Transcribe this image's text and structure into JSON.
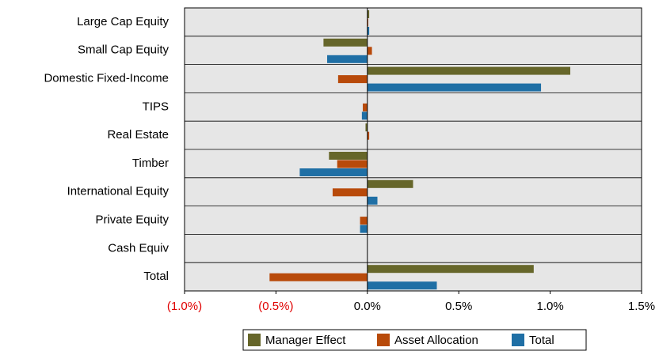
{
  "chart_data": {
    "type": "hbar",
    "categories": [
      "Large Cap Equity",
      "Small Cap Equity",
      "Domestic Fixed-Income",
      "TIPS",
      "Real Estate",
      "Timber",
      "International Equity",
      "Private Equity",
      "Cash Equiv",
      "Total"
    ],
    "series": [
      {
        "name": "Manager Effect",
        "color": "#66662a",
        "values": [
          0.01,
          -0.24,
          1.11,
          0,
          -0.01,
          -0.21,
          0.25,
          0,
          0,
          0.91
        ]
      },
      {
        "name": "Asset Allocation",
        "color": "#b84a0a",
        "values": [
          0.005,
          0.025,
          -0.16,
          -0.025,
          0.01,
          -0.165,
          -0.19,
          -0.04,
          0,
          -0.535
        ]
      },
      {
        "name": "Total",
        "color": "#1f6fa5",
        "values": [
          0.01,
          -0.22,
          0.95,
          -0.03,
          0,
          -0.37,
          0.055,
          -0.04,
          0,
          0.38
        ]
      }
    ],
    "xlim": [
      -1.0,
      1.5
    ],
    "xticks": [
      {
        "value": -1.0,
        "label": "(1.0%)"
      },
      {
        "value": -0.5,
        "label": "(0.5%)"
      },
      {
        "value": 0,
        "label": "0.0%"
      },
      {
        "value": 0.5,
        "label": "0.5%"
      },
      {
        "value": 1.0,
        "label": "1.0%"
      },
      {
        "value": 1.5,
        "label": "1.5%"
      }
    ],
    "legend": "bottom"
  }
}
